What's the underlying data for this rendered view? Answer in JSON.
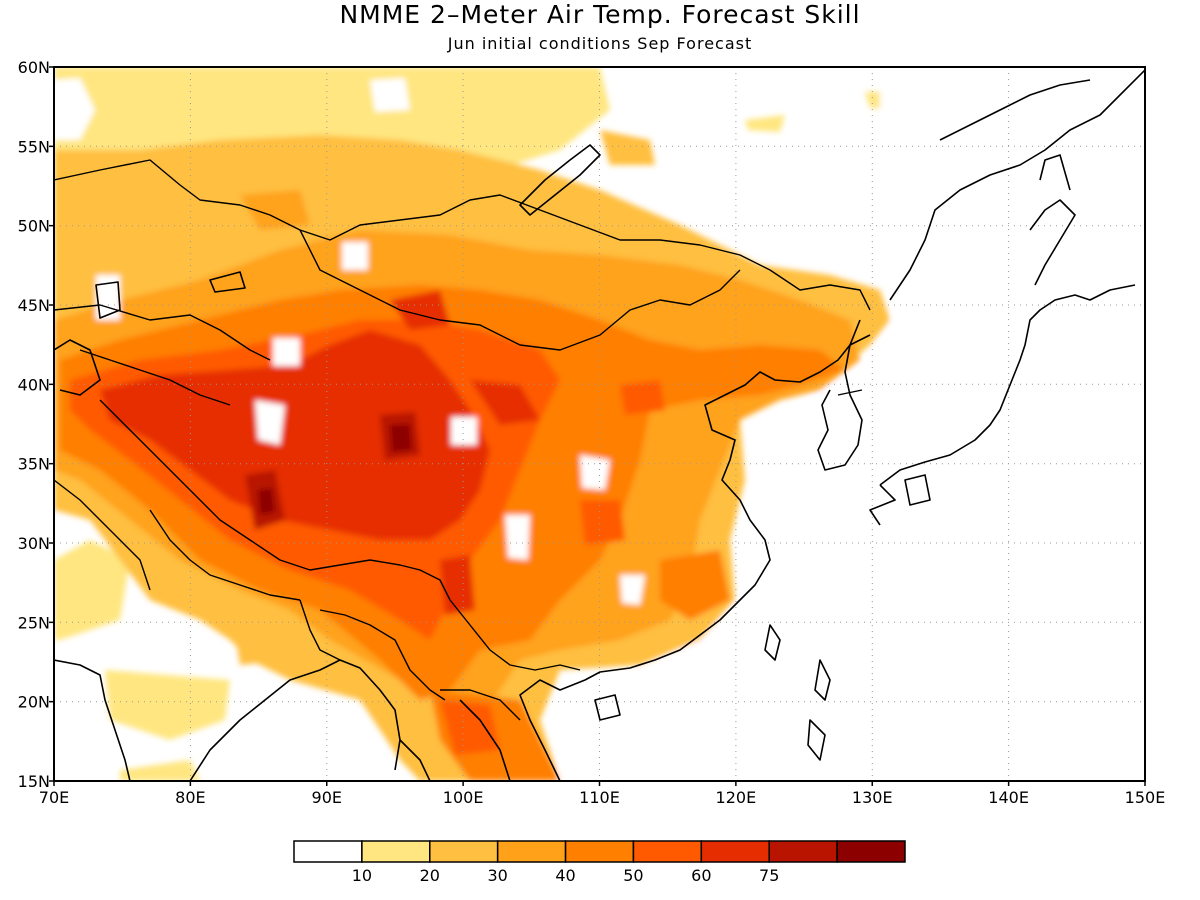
{
  "title": "NMME 2–Meter Air Temp. Forecast Skill",
  "subtitle": "Jun initial conditions  Sep Forecast",
  "map": {
    "lon_range": [
      70,
      150
    ],
    "lat_range": [
      15,
      60
    ],
    "x_ticks": [
      "70E",
      "80E",
      "90E",
      "100E",
      "110E",
      "120E",
      "130E",
      "140E",
      "150E"
    ],
    "y_ticks": [
      "15N",
      "20N",
      "25N",
      "30N",
      "35N",
      "40N",
      "45N",
      "50N",
      "55N",
      "60N"
    ],
    "grid": "dotted"
  },
  "colorbar": {
    "colors": [
      "#ffffff",
      "#ffe680",
      "#ffbf40",
      "#ffa21a",
      "#ff7f00",
      "#ff5a00",
      "#e62d00",
      "#b81400",
      "#8c0000"
    ],
    "labels": [
      "10",
      "20",
      "30",
      "40",
      "50",
      "60",
      "75"
    ]
  }
}
